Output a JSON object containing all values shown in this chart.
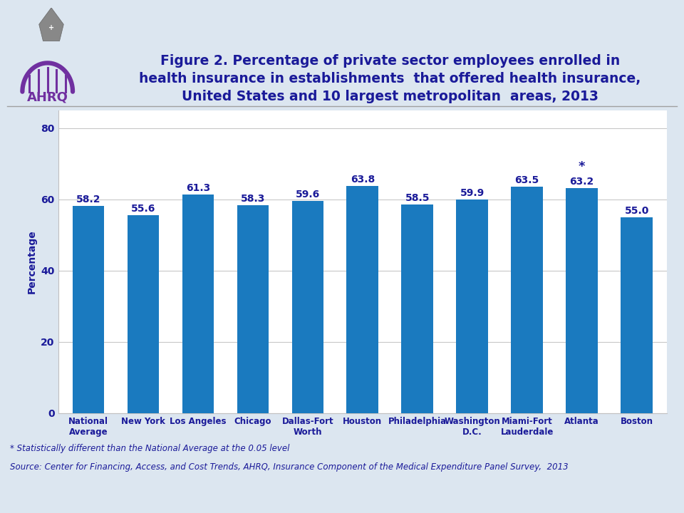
{
  "categories": [
    "National\nAverage",
    "New York",
    "Los Angeles",
    "Chicago",
    "Dallas-Fort\nWorth",
    "Houston",
    "Philadelphia",
    "Washington\nD.C.",
    "Miami-Fort\nLauderdale",
    "Atlanta",
    "Boston"
  ],
  "values": [
    58.2,
    55.6,
    61.3,
    58.3,
    59.6,
    63.8,
    58.5,
    59.9,
    63.5,
    63.2,
    55.0
  ],
  "bar_color": "#1a7abf",
  "ylabel": "Percentage",
  "ylim": [
    0,
    85
  ],
  "yticks": [
    0,
    20,
    40,
    60,
    80
  ],
  "title_line1": "Figure 2. Percentage of private sector employees enrolled in",
  "title_line2": "health insurance in establishments  that offered health insurance,",
  "title_line3": "United States and 10 largest metropolitan  areas, 2013",
  "title_color": "#1a1a99",
  "title_fontsize": 13.5,
  "bar_label_color": "#1a1a99",
  "bar_label_fontsize": 10,
  "axis_label_color": "#1a1a99",
  "tick_label_color": "#1a1a99",
  "tick_label_fontsize": 8.5,
  "ylabel_fontsize": 10,
  "footnote1": "* Statistically different than the National Average at the 0.05 level",
  "footnote2": "Source: Center for Financing, Access, and Cost Trends, AHRQ, Insurance Component of the Medical Expenditure Panel Survey,  2013",
  "footnote_color": "#1a1a99",
  "footnote_fontsize": 8.5,
  "background_color": "#dce6f0",
  "plot_bg_color": "#ffffff",
  "star_index": 9,
  "header_line_color": "#a0a0a0",
  "logo_color": "#7030a0",
  "hhs_color": "#404040"
}
